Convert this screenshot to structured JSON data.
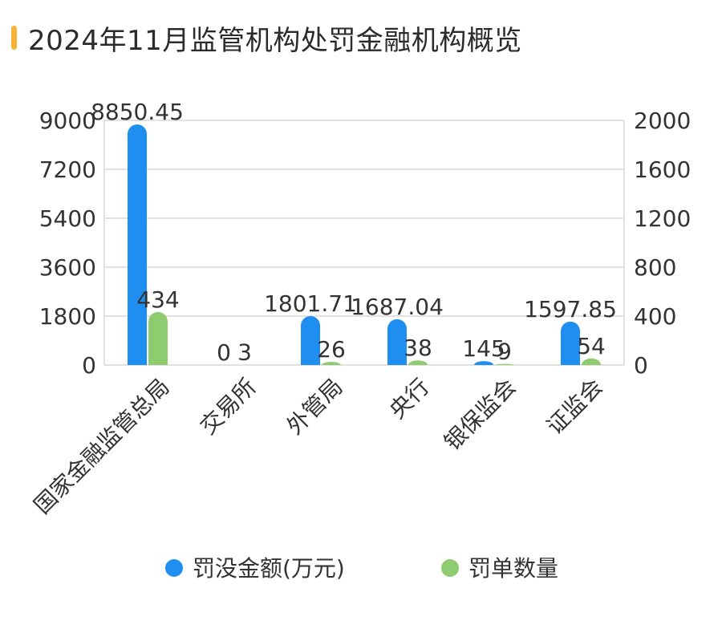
{
  "title": "2024年11月监管机构处罚金融机构概览",
  "colors": {
    "accent": "#f5b335",
    "series1": "#1e8ef0",
    "series2": "#8fcc6f",
    "grid": "#d9d9d9"
  },
  "chart_data": {
    "type": "bar",
    "title": "2024年11月监管机构处罚金融机构概览",
    "categories": [
      "国家金融监管总局",
      "交易所",
      "外管局",
      "央行",
      "银保监会",
      "证监会"
    ],
    "series": [
      {
        "name": "罚没金额(万元)",
        "axis": "left",
        "values": [
          8850.45,
          0,
          1801.71,
          1687.04,
          145,
          1597.85
        ],
        "labels": [
          "8850.45",
          "0",
          "1801.71",
          "1687.04",
          "145",
          "1597.85"
        ]
      },
      {
        "name": "罚单数量",
        "axis": "right",
        "values": [
          434,
          3,
          26,
          38,
          9,
          54
        ],
        "labels": [
          "434",
          "3",
          "26",
          "38",
          "9",
          "54"
        ]
      }
    ],
    "y_left": {
      "min": 0,
      "max": 9000,
      "ticks": [
        "0",
        "1800",
        "3600",
        "5400",
        "7200",
        "9000"
      ]
    },
    "y_right": {
      "min": 0,
      "max": 2000,
      "ticks": [
        "0",
        "400",
        "800",
        "1200",
        "1600",
        "2000"
      ]
    },
    "grid": true,
    "legend_position": "bottom"
  }
}
